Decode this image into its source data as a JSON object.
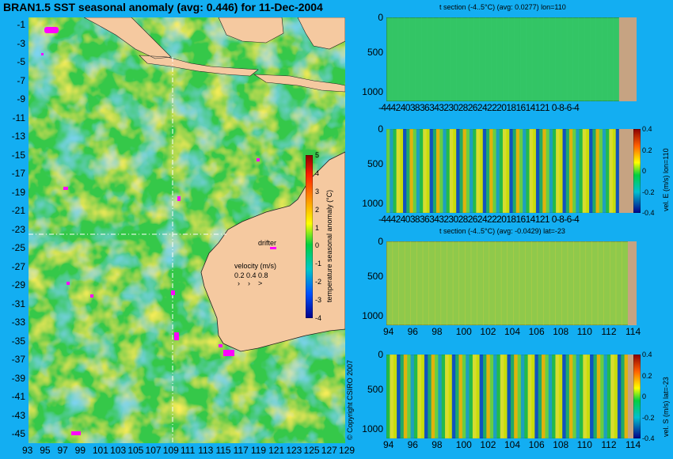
{
  "title": "BRAN1.5 SST seasonal anomaly (avg: 0.446) for 11-Dec-2004",
  "map": {
    "lat_ticks": [
      "-1",
      "-3",
      "-5",
      "-7",
      "-9",
      "-11",
      "-13",
      "-15",
      "-17",
      "-19",
      "-21",
      "-23",
      "-25",
      "-27",
      "-29",
      "-31",
      "-33",
      "-35",
      "-37",
      "-39",
      "-41",
      "-43",
      "-45"
    ],
    "lon_ticks": [
      "93",
      "95",
      "97",
      "99",
      "101",
      "103",
      "105",
      "107",
      "109",
      "111",
      "113",
      "115",
      "117",
      "119",
      "121",
      "123",
      "125",
      "127",
      "129"
    ],
    "drifter_label": "drifter",
    "velocity_label": "velocity (m/s)",
    "velocity_scale": "0.2 0.4 0.8",
    "copyright": "© Copyright CSIRO 2007",
    "colorbar_label": "temperature seasonal anomaly (°C)",
    "colorbar_ticks": [
      "5",
      "4",
      "3",
      "2",
      "1",
      "0",
      "-1",
      "-2",
      "-3",
      "-4"
    ],
    "colors": {
      "ocean": "#35c84a",
      "land": "#f5c9a0",
      "warm": "#ffd200",
      "cool": "#3aa6d8",
      "drifter": "#ff00ff",
      "background": "#13aef2"
    }
  },
  "sections": [
    {
      "title": "t section (-4..5°C) (avg: 0.0277) lon=110",
      "y_ticks": [
        "0",
        "500",
        "1000"
      ],
      "x_ticks": "-44424038363432302826242220181614121 0-8-6-4",
      "has_colorbar": false
    },
    {
      "title": "",
      "y_ticks": [
        "0",
        "500",
        "1000"
      ],
      "x_ticks": "-44424038363432302826242220181614121 0-8-6-4",
      "has_colorbar": true,
      "colorbar_label": "vel. E (m/s) lon=110",
      "colorbar_ticks": [
        "0.4",
        "0.2",
        "0",
        "-0.2",
        "-0.4"
      ]
    },
    {
      "title": "t section (-4..5°C) (avg: -0.0429) lat=-23",
      "y_ticks": [
        "0",
        "500",
        "1000"
      ],
      "x_ticks": [
        "94",
        "96",
        "98",
        "100",
        "102",
        "104",
        "106",
        "108",
        "110",
        "112",
        "114"
      ],
      "has_colorbar": false
    },
    {
      "title": "",
      "y_ticks": [
        "0",
        "500",
        "1000"
      ],
      "x_ticks": [
        "94",
        "96",
        "98",
        "100",
        "102",
        "104",
        "106",
        "108",
        "110",
        "112",
        "114"
      ],
      "has_colorbar": true,
      "colorbar_label": "vel. S (m/s) lat=-23",
      "colorbar_ticks": [
        "0.4",
        "0.2",
        "0",
        "-0.2",
        "-0.4"
      ]
    }
  ]
}
